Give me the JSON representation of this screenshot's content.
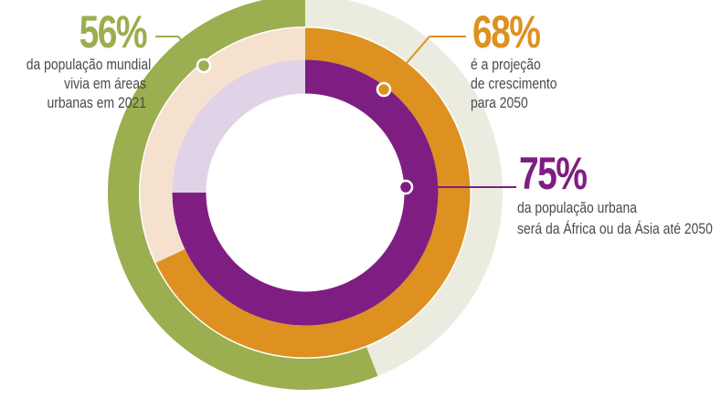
{
  "colors": {
    "green": "#9bae50",
    "green_light": "#ebecdf",
    "orange": "#de9120",
    "orange_light": "#f6e1cf",
    "purple": "#7f1e82",
    "purple_light": "#e1d3e7"
  },
  "chart_data": {
    "type": "pie",
    "series": [
      {
        "value": 56,
        "label": "56%",
        "description": [
          "da população mundial",
          "vivia em áreas",
          "urbanas em 2021"
        ],
        "color": "#9bae50",
        "remainder_color": "#ebecdf"
      },
      {
        "value": 68,
        "label": "68%",
        "description": [
          "é a projeção",
          "de crescimento",
          "para 2050"
        ],
        "color": "#de9120",
        "remainder_color": "#f6e1cf"
      },
      {
        "value": 75,
        "label": "75%",
        "description": [
          "da população urbana",
          "será da África ou da Ásia até 2050"
        ],
        "color": "#7f1e82",
        "remainder_color": "#e1d3e7"
      }
    ]
  }
}
